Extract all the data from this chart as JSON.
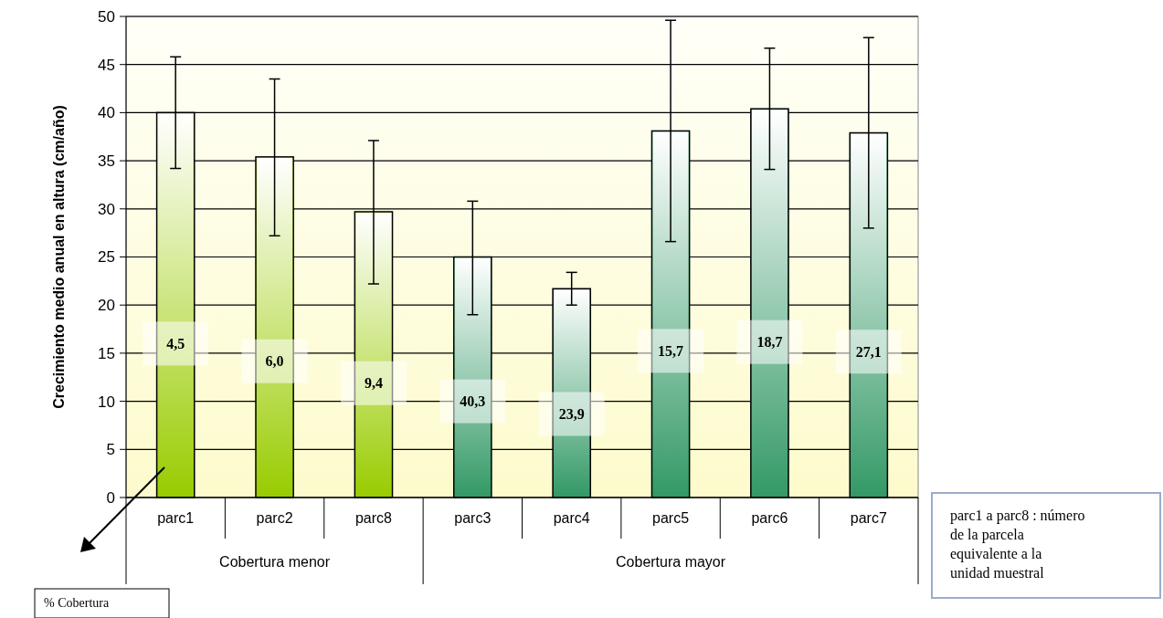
{
  "chart_data": {
    "type": "bar",
    "ylabel": "Crecimiento medio anual en altura (cm/año)",
    "categories": [
      "parc1",
      "parc2",
      "parc8",
      "parc3",
      "parc4",
      "parc5",
      "parc6",
      "parc7"
    ],
    "values": [
      40.0,
      35.4,
      29.7,
      25.0,
      21.7,
      38.1,
      40.4,
      37.9
    ],
    "colors": [
      "#99cc00",
      "#99cc00",
      "#99cc00",
      "#339966",
      "#339966",
      "#339966",
      "#339966",
      "#339966"
    ],
    "errors": [
      [
        34.2,
        45.8
      ],
      [
        27.2,
        43.5
      ],
      [
        22.2,
        37.1
      ],
      [
        19.0,
        30.8
      ],
      [
        20.0,
        23.4
      ],
      [
        26.6,
        49.6
      ],
      [
        34.1,
        46.7
      ],
      [
        28.0,
        47.8
      ]
    ],
    "ylim": [
      0,
      50
    ],
    "yticks": [
      0,
      5,
      10,
      15,
      20,
      25,
      30,
      35,
      40,
      45,
      50
    ],
    "grid": "y",
    "annotations": [
      "4,5",
      "6,0",
      "9,4",
      "40,3",
      "23,9",
      "15,7",
      "18,7",
      "27,1",
      "Cobertura menor",
      "Cobertura mayor",
      "% Cobertura",
      "parc1 a parc8 : número de la parcela equivalente a la unidad muestral"
    ]
  }
}
